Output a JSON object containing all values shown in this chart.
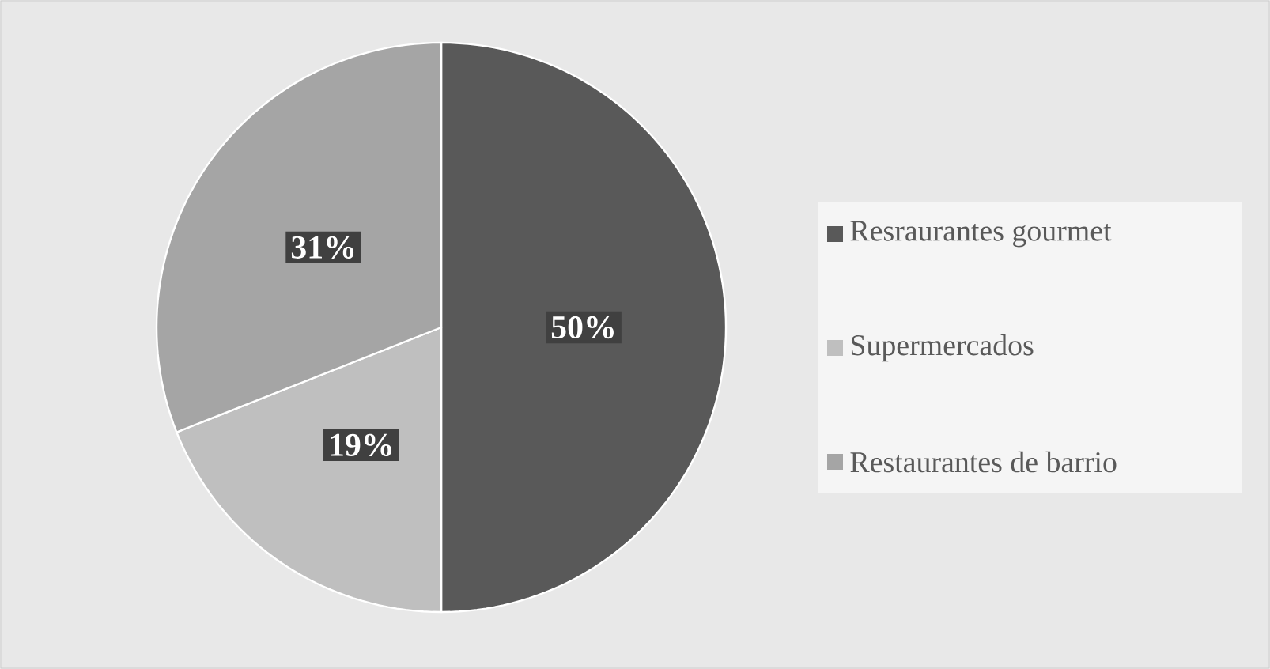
{
  "chart_data": {
    "type": "pie",
    "categories": [
      "Resraurantes gourmet",
      "Supermercados",
      "Restaurantes de barrio"
    ],
    "values": [
      50,
      19,
      31
    ],
    "colors": [
      "#595959",
      "#bfbfbf",
      "#a5a5a5"
    ],
    "value_labels": [
      "50%",
      "19%",
      "31%"
    ],
    "legend": "right"
  }
}
